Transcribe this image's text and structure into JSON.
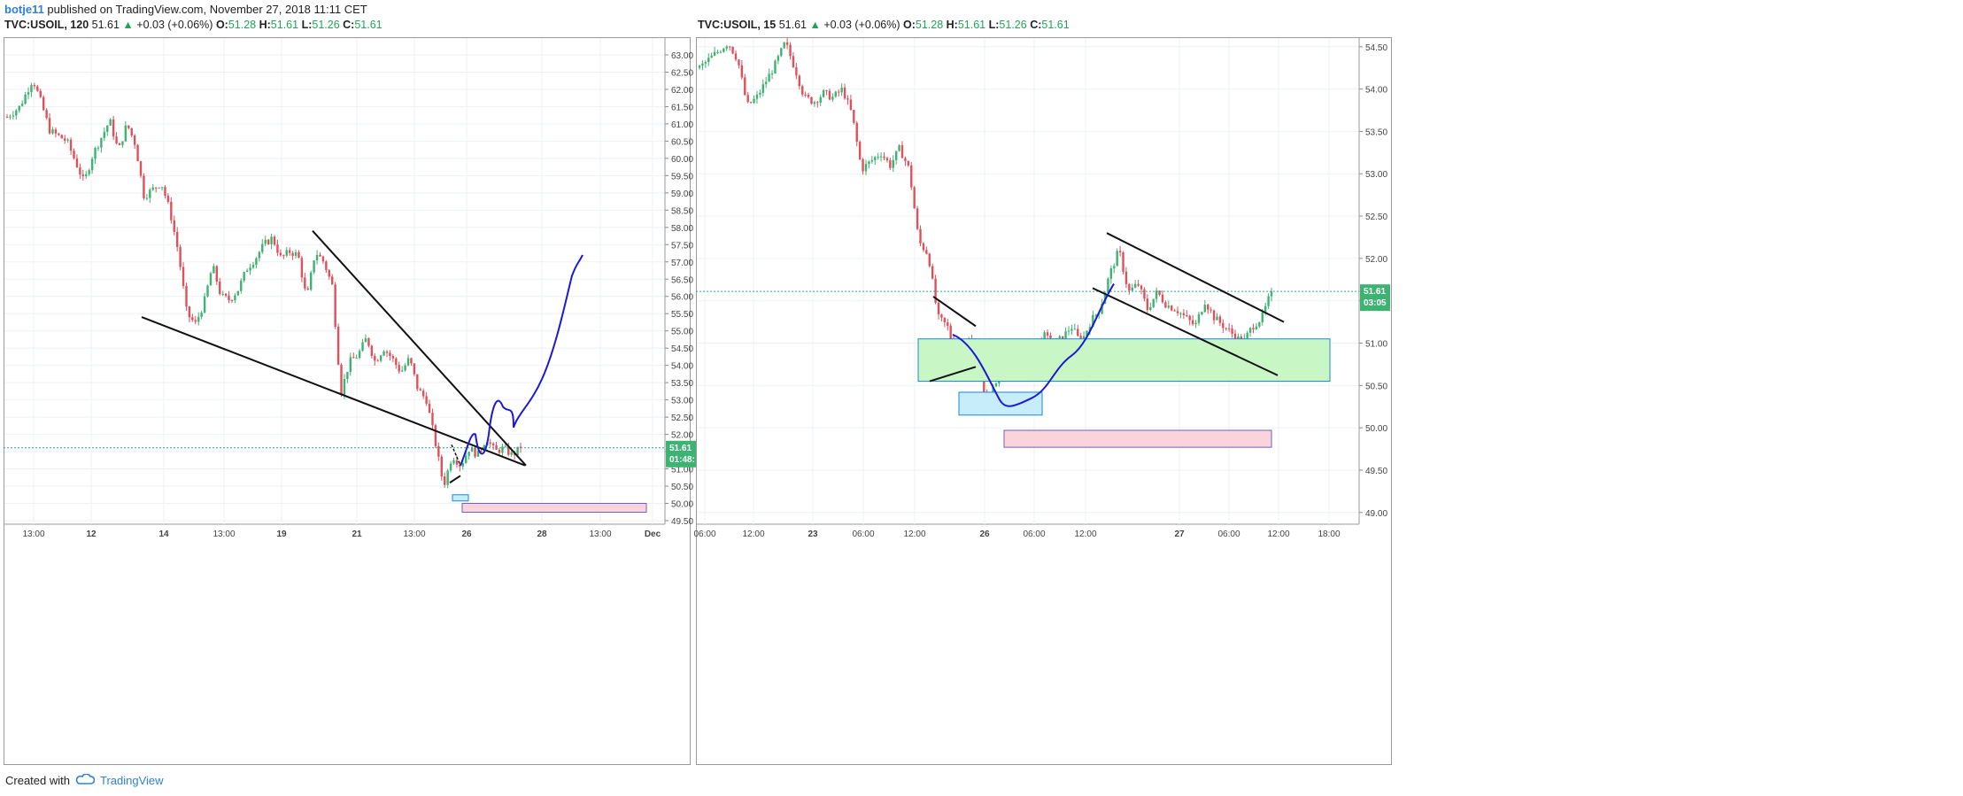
{
  "header": {
    "author": "botje11",
    "published_text": " published on TradingView.com, November 27, 2018 11:11 CET"
  },
  "charts_meta": [
    {
      "symbol": "TVC:USOIL, 120",
      "last": "51.61",
      "change": "+0.03 (+0.06%)",
      "o": "51.28",
      "h": "51.61",
      "l": "51.26",
      "c": "51.61",
      "price_label": "51.61",
      "countdown": "01:48:"
    },
    {
      "symbol": "TVC:USOIL, 15",
      "last": "51.61",
      "change": "+0.03 (+0.06%)",
      "o": "51.28",
      "h": "51.61",
      "l": "51.26",
      "c": "51.61",
      "price_label": "51.61",
      "countdown": "03:05"
    }
  ],
  "footer": {
    "created_with": "Created with",
    "brand": "TradingView"
  },
  "colors": {
    "up": "#26a69a",
    "up_candle": "#3cb371",
    "down": "#e0505a",
    "grid": "#eef2f5",
    "axis_text": "#444444",
    "price_line": "#26a69a",
    "zone_green": "#c8f7c5",
    "zone_blue": "#c7ecfa",
    "zone_pink": "#fbd3db",
    "curve": "#1a1ad6"
  },
  "chart_data": [
    {
      "type": "candlestick",
      "title": "TVC:USOIL, 120",
      "ylim": [
        49.3,
        63.1
      ],
      "y_ticks": [
        "63.00",
        "62.50",
        "62.00",
        "61.50",
        "61.00",
        "60.50",
        "60.00",
        "59.50",
        "59.00",
        "58.50",
        "58.00",
        "57.50",
        "57.00",
        "56.50",
        "56.00",
        "55.50",
        "55.00",
        "54.50",
        "54.00",
        "53.50",
        "53.00",
        "52.50",
        "52.00",
        "51.50",
        "51.00",
        "50.50",
        "50.00",
        "49.50"
      ],
      "x_ticks": [
        "13:00",
        "12",
        "14",
        "13:00",
        "19",
        "21",
        "13:00",
        "26",
        "28",
        "13:00",
        "Dec"
      ],
      "last_price": 51.61,
      "anchors": [
        [
          0,
          61.2
        ],
        [
          3,
          61.5
        ],
        [
          6,
          62.3
        ],
        [
          8,
          61.6
        ],
        [
          10,
          60.8
        ],
        [
          14,
          60.5
        ],
        [
          18,
          59.3
        ],
        [
          20,
          60.1
        ],
        [
          22,
          60.6
        ],
        [
          24,
          61.1
        ],
        [
          26,
          60.2
        ],
        [
          28,
          61.0
        ],
        [
          30,
          60.4
        ],
        [
          32,
          58.9
        ],
        [
          34,
          59.1
        ],
        [
          36,
          59.3
        ],
        [
          38,
          58.5
        ],
        [
          40,
          57.3
        ],
        [
          42,
          55.5
        ],
        [
          44,
          55.2
        ],
        [
          46,
          55.8
        ],
        [
          48,
          56.9
        ],
        [
          50,
          56.0
        ],
        [
          52,
          55.9
        ],
        [
          54,
          56.2
        ],
        [
          56,
          56.8
        ],
        [
          58,
          57.1
        ],
        [
          60,
          57.5
        ],
        [
          62,
          57.7
        ],
        [
          64,
          57.1
        ],
        [
          66,
          57.3
        ],
        [
          68,
          57.2
        ],
        [
          70,
          55.9
        ],
        [
          72,
          57.3
        ],
        [
          74,
          57.0
        ],
        [
          76,
          56.3
        ],
        [
          78,
          53.2
        ],
        [
          80,
          54.1
        ],
        [
          82,
          54.3
        ],
        [
          84,
          54.8
        ],
        [
          86,
          54.1
        ],
        [
          88,
          54.5
        ],
        [
          90,
          54.2
        ],
        [
          92,
          53.8
        ],
        [
          94,
          54.2
        ],
        [
          96,
          53.3
        ],
        [
          98,
          53.0
        ],
        [
          100,
          51.8
        ],
        [
          102,
          50.5
        ],
        [
          104,
          51.4
        ],
        [
          106,
          51.1
        ],
        [
          108,
          51.6
        ],
        [
          110,
          51.4
        ],
        [
          112,
          51.9
        ],
        [
          114,
          51.5
        ],
        [
          116,
          51.6
        ],
        [
          118,
          51.4
        ],
        [
          120,
          51.61
        ]
      ],
      "annotations": {
        "lines": [
          [
            54.3,
            "support-start"
          ]
        ],
        "zones": [
          {
            "type": "blue",
            "y": [
              50.1,
              50.25
            ]
          },
          {
            "type": "pink",
            "y": [
              49.8,
              50.05
            ]
          }
        ]
      }
    },
    {
      "type": "candlestick",
      "title": "TVC:USOIL, 15",
      "ylim": [
        48.85,
        54.65
      ],
      "y_ticks": [
        "54.50",
        "54.00",
        "53.50",
        "53.00",
        "52.50",
        "52.00",
        "51.50",
        "51.00",
        "50.50",
        "50.00",
        "49.50",
        "49.00"
      ],
      "x_ticks": [
        "06:00",
        "12:00",
        "23",
        "06:00",
        "12:00",
        "26",
        "06:00",
        "12:00",
        "27",
        "06:00",
        "12:00",
        "18:00"
      ],
      "last_price": 51.61,
      "anchors": [
        [
          0,
          54.25
        ],
        [
          3,
          54.4
        ],
        [
          6,
          54.55
        ],
        [
          8,
          54.35
        ],
        [
          10,
          53.8
        ],
        [
          12,
          53.9
        ],
        [
          14,
          54.1
        ],
        [
          16,
          54.3
        ],
        [
          18,
          54.55
        ],
        [
          20,
          54.25
        ],
        [
          22,
          53.9
        ],
        [
          24,
          53.85
        ],
        [
          26,
          53.95
        ],
        [
          28,
          53.9
        ],
        [
          30,
          54.0
        ],
        [
          32,
          53.7
        ],
        [
          34,
          53.05
        ],
        [
          36,
          53.15
        ],
        [
          38,
          53.25
        ],
        [
          40,
          53.1
        ],
        [
          42,
          53.3
        ],
        [
          44,
          53.05
        ],
        [
          46,
          52.2
        ],
        [
          48,
          52.05
        ],
        [
          50,
          51.3
        ],
        [
          52,
          51.2
        ],
        [
          54,
          50.8
        ],
        [
          56,
          51.05
        ],
        [
          58,
          50.95
        ],
        [
          60,
          50.3
        ],
        [
          62,
          50.5
        ],
        [
          64,
          50.75
        ],
        [
          66,
          50.7
        ],
        [
          68,
          50.8
        ],
        [
          70,
          50.9
        ],
        [
          72,
          51.1
        ],
        [
          74,
          51.0
        ],
        [
          76,
          51.05
        ],
        [
          78,
          51.2
        ],
        [
          80,
          51.0
        ],
        [
          82,
          51.25
        ],
        [
          84,
          51.4
        ],
        [
          86,
          51.8
        ],
        [
          88,
          52.1
        ],
        [
          90,
          51.6
        ],
        [
          92,
          51.7
        ],
        [
          94,
          51.4
        ],
        [
          96,
          51.6
        ],
        [
          98,
          51.45
        ],
        [
          100,
          51.4
        ],
        [
          102,
          51.3
        ],
        [
          104,
          51.2
        ],
        [
          106,
          51.5
        ],
        [
          108,
          51.3
        ],
        [
          110,
          51.2
        ],
        [
          112,
          51.1
        ],
        [
          114,
          51.0
        ],
        [
          116,
          51.2
        ],
        [
          118,
          51.3
        ],
        [
          120,
          51.61
        ]
      ],
      "annotations": {
        "zones": [
          {
            "type": "green",
            "y": [
              50.55,
              51.05
            ]
          },
          {
            "type": "blue",
            "y": [
              50.15,
              50.4
            ]
          },
          {
            "type": "pink",
            "y": [
              49.75,
              49.95
            ]
          }
        ]
      }
    }
  ]
}
